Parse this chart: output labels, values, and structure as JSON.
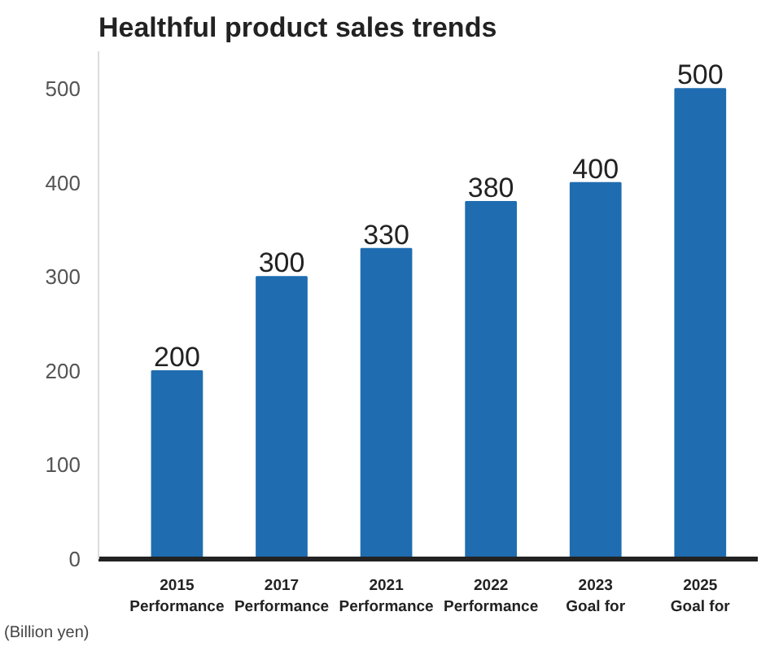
{
  "chart_data": {
    "type": "bar",
    "title": "Healthful product sales trends",
    "ylabel": "(Billion yen)",
    "categories": [
      "2015\nPerformance",
      "2017\nPerformance",
      "2021\nPerformance",
      "2022\nPerformance",
      "2023\nGoal for",
      "2025\nGoal for"
    ],
    "values": [
      200,
      300,
      330,
      380,
      400,
      500
    ],
    "color": "#1f6db0",
    "ylim": [
      0,
      540
    ],
    "yticks": [
      0,
      100,
      200,
      300,
      400,
      500
    ],
    "grid": false,
    "data_labels": true
  }
}
